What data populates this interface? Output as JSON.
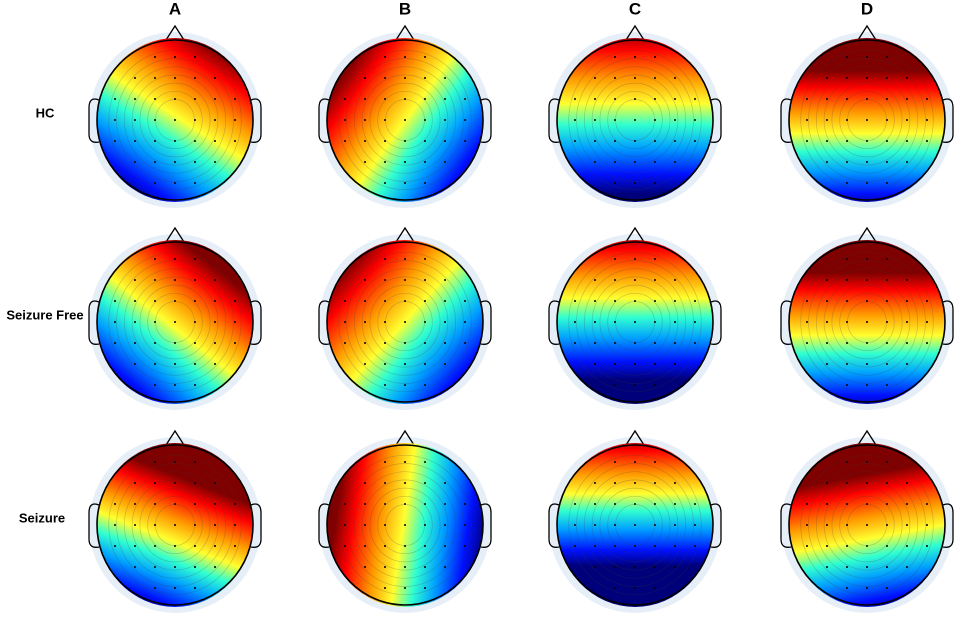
{
  "columns": [
    "A",
    "B",
    "C",
    "D"
  ],
  "rows": [
    "HC",
    "Seizure Free",
    "Seizure"
  ]
}
